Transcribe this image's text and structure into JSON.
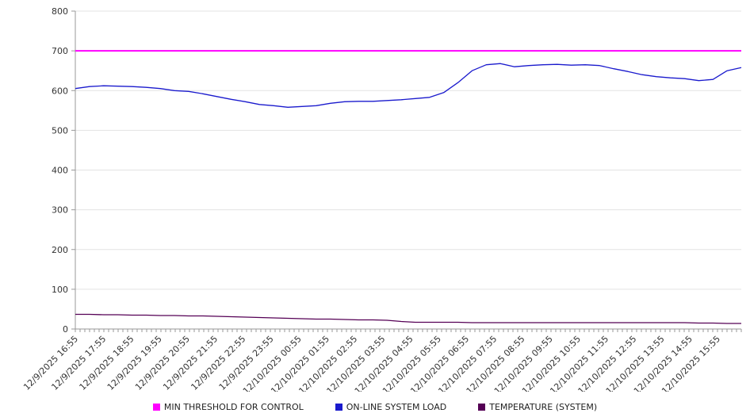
{
  "chart_data": {
    "type": "line",
    "title": "",
    "xlabel": "",
    "ylabel": "",
    "ylim": [
      0,
      800
    ],
    "ytick_step": 100,
    "grid": true,
    "legend_position": "bottom",
    "x_labels": [
      "12/9/2025 16:55",
      "12/9/2025 17:55",
      "12/9/2025 18:55",
      "12/9/2025 19:55",
      "12/9/2025 20:55",
      "12/9/2025 21:55",
      "12/9/2025 22:55",
      "12/9/2025 23:55",
      "12/10/2025 00:55",
      "12/10/2025 01:55",
      "12/10/2025 02:55",
      "12/10/2025 03:55",
      "12/10/2025 04:55",
      "12/10/2025 05:55",
      "12/10/2025 06:55",
      "12/10/2025 07:55",
      "12/10/2025 08:55",
      "12/10/2025 09:55",
      "12/10/2025 10:55",
      "12/10/2025 11:55",
      "12/10/2025 12:55",
      "12/10/2025 13:55",
      "12/10/2025 14:55",
      "12/10/2025 15:55"
    ],
    "series": [
      {
        "name": "MIN THRESHOLD FOR CONTROL",
        "color": "#ff00ff",
        "style": "threshold",
        "value": 700
      },
      {
        "name": "ON-LINE SYSTEM LOAD",
        "color": "#1a1acd",
        "style": "line",
        "values": [
          605,
          610,
          612,
          611,
          610,
          608,
          605,
          600,
          598,
          592,
          585,
          578,
          572,
          565,
          562,
          558,
          560,
          562,
          568,
          572,
          573,
          573,
          575,
          577,
          580,
          583,
          595,
          620,
          650,
          665,
          668,
          660,
          663,
          665,
          666,
          664,
          665,
          663,
          655,
          648,
          640,
          635,
          632,
          630,
          625,
          628,
          650,
          658
        ]
      },
      {
        "name": "TEMPERATURE (SYSTEM)",
        "color": "#550055",
        "style": "line",
        "values": [
          37,
          37,
          36,
          36,
          35,
          35,
          34,
          34,
          33,
          33,
          32,
          31,
          30,
          29,
          28,
          27,
          26,
          25,
          25,
          24,
          23,
          23,
          22,
          19,
          17,
          17,
          17,
          17,
          16,
          16,
          16,
          16,
          16,
          16,
          16,
          16,
          16,
          16,
          16,
          16,
          16,
          16,
          16,
          16,
          15,
          15,
          14,
          14
        ]
      }
    ]
  }
}
